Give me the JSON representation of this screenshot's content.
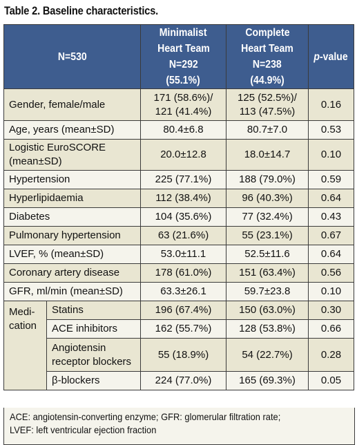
{
  "title": "Table 2. Baseline characteristics.",
  "header": {
    "n_label": "N=530",
    "col1": [
      "Minimalist",
      "Heart Team",
      "N=292",
      "(55.1%)"
    ],
    "col2": [
      "Complete",
      "Heart Team",
      "N=238",
      "(44.9%)"
    ],
    "pvalue_italic": "p",
    "pvalue_rest": "-value"
  },
  "rows": [
    {
      "label": [
        "Gender, female/male"
      ],
      "min": [
        "171 (58.6%)/",
        "121 (41.4%)"
      ],
      "comp": [
        "125 (52.5%)/",
        "113 (47.5%)"
      ],
      "p": "0.16"
    },
    {
      "label": [
        "Age, years (mean±SD)"
      ],
      "min": [
        "80.4±6.8"
      ],
      "comp": [
        "80.7±7.0"
      ],
      "p": "0.53"
    },
    {
      "label": [
        "Logistic EuroSCORE",
        "(mean±SD)"
      ],
      "min": [
        "20.0±12.8"
      ],
      "comp": [
        "18.0±14.7"
      ],
      "p": "0.10"
    },
    {
      "label": [
        "Hypertension"
      ],
      "min": [
        "225 (77.1%)"
      ],
      "comp": [
        "188 (79.0%)"
      ],
      "p": "0.59"
    },
    {
      "label": [
        "Hyperlipidaemia"
      ],
      "min": [
        "112 (38.4%)"
      ],
      "comp": [
        "96 (40.3%)"
      ],
      "p": "0.64"
    },
    {
      "label": [
        "Diabetes"
      ],
      "min": [
        "104 (35.6%)"
      ],
      "comp": [
        "77 (32.4%)"
      ],
      "p": "0.43"
    },
    {
      "label": [
        "Pulmonary hypertension"
      ],
      "min": [
        "63 (21.6%)"
      ],
      "comp": [
        "55 (23.1%)"
      ],
      "p": "0.67"
    },
    {
      "label": [
        "LVEF, % (mean±SD)"
      ],
      "min": [
        "53.0±11.1"
      ],
      "comp": [
        "52.5±11.6"
      ],
      "p": "0.64"
    },
    {
      "label": [
        "Coronary artery disease"
      ],
      "min": [
        "178 (61.0%)"
      ],
      "comp": [
        "151 (63.4%)"
      ],
      "p": "0.56"
    },
    {
      "label": [
        "GFR, ml/min (mean±SD)"
      ],
      "min": [
        "63.3±26.1"
      ],
      "comp": [
        "59.7±23.8"
      ],
      "p": "0.10"
    }
  ],
  "medication": {
    "label": [
      "Medi-",
      "cation"
    ],
    "rows": [
      {
        "label": [
          "Statins"
        ],
        "min": [
          "196 (67.4%)"
        ],
        "comp": [
          "150 (63.0%)"
        ],
        "p": "0.30"
      },
      {
        "label": [
          "ACE inhibitors"
        ],
        "min": [
          "162 (55.7%)"
        ],
        "comp": [
          "128 (53.8%)"
        ],
        "p": "0.66"
      },
      {
        "label": [
          "Angiotensin",
          "receptor blockers"
        ],
        "min": [
          "55 (18.9%)"
        ],
        "comp": [
          "54 (22.7%)"
        ],
        "p": "0.28"
      },
      {
        "label": [
          "β-blockers"
        ],
        "min": [
          "224 (77.0%)"
        ],
        "comp": [
          "165 (69.3%)"
        ],
        "p": "0.05"
      }
    ]
  },
  "footnote": [
    "ACE: angiotensin-converting enzyme; GFR: glomerular filtration rate;",
    "LVEF: left ventricular ejection fraction"
  ]
}
